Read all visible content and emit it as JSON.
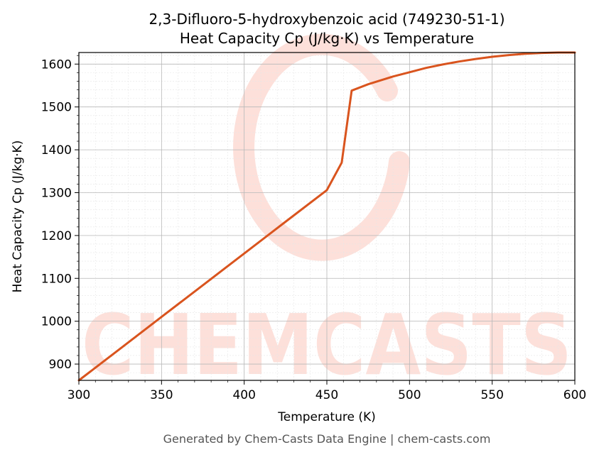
{
  "chart_data": {
    "type": "line",
    "title": "2,3-Difluoro-5-hydroxybenzoic acid (749230-51-1)",
    "subtitle": "Heat Capacity Cp (J/kg·K) vs Temperature",
    "xlabel": "Temperature (K)",
    "ylabel": "Heat Capacity Cp (J/kg·K)",
    "xlim": [
      300,
      600
    ],
    "ylim": [
      862,
      1627
    ],
    "x_ticks": [
      300,
      350,
      400,
      450,
      500,
      550,
      600
    ],
    "y_ticks": [
      900,
      1000,
      1100,
      1200,
      1300,
      1400,
      1500,
      1600
    ],
    "grid": true,
    "series": [
      {
        "color": "#d9541e",
        "x": [
          300,
          325,
          350,
          375,
          400,
          425,
          450,
          459,
          465,
          475,
          490,
          500,
          510,
          520,
          530,
          540,
          550,
          560,
          570,
          580,
          590,
          600
        ],
        "y": [
          862,
          936,
          1010,
          1084,
          1158,
          1232,
          1306,
          1370,
          1538,
          1553,
          1571,
          1581,
          1591,
          1599,
          1606,
          1612,
          1617,
          1621,
          1624,
          1626,
          1627,
          1627
        ]
      }
    ]
  },
  "footer": "Generated by Chem-Casts Data Engine | chem-casts.com",
  "watermark": {
    "text": "CHEMCASTS",
    "color": "#fde0da"
  }
}
